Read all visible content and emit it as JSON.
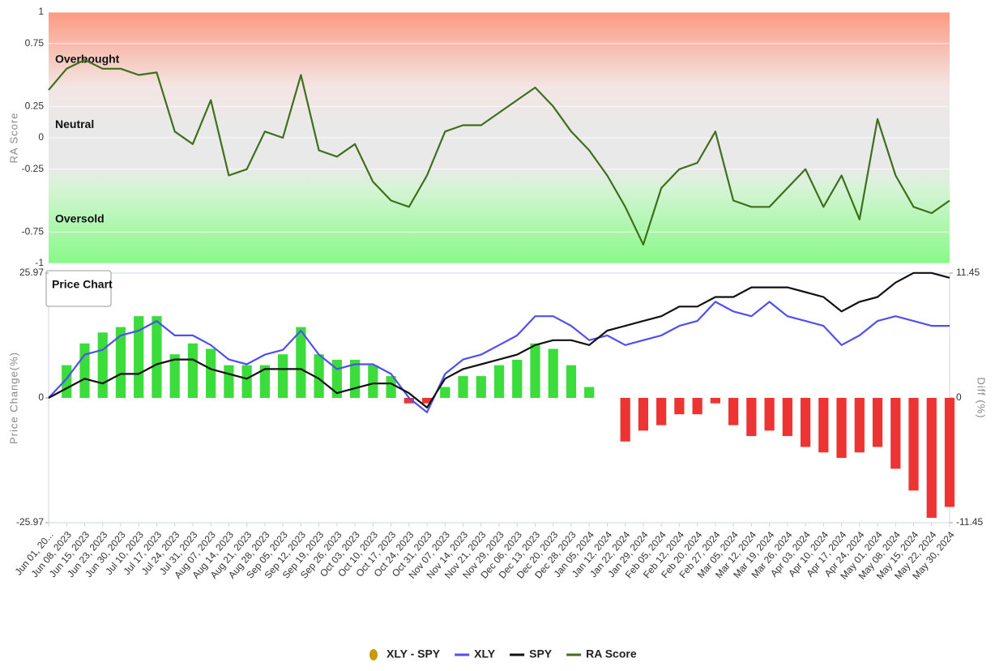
{
  "chart_data": [
    {
      "type": "line",
      "ylabel": "RA Score",
      "annotations": [
        "Overbought",
        "Neutral",
        "Oversold"
      ],
      "ylim": [
        -1,
        1
      ],
      "yticks": [
        -1,
        -0.75,
        -0.25,
        0,
        0.25,
        0.75,
        1
      ],
      "grid": true,
      "series": [
        {
          "name": "RA Score",
          "color": "#3f6f1c",
          "values": [
            0.38,
            0.55,
            0.62,
            0.55,
            0.55,
            0.5,
            0.52,
            0.05,
            -0.05,
            0.3,
            -0.3,
            -0.25,
            0.05,
            0.0,
            0.5,
            -0.1,
            -0.15,
            -0.05,
            -0.35,
            -0.5,
            -0.55,
            -0.3,
            0.05,
            0.1,
            0.1,
            0.2,
            0.3,
            0.4,
            0.25,
            0.05,
            -0.1,
            -0.3,
            -0.55,
            -0.85,
            -0.4,
            -0.25,
            -0.2,
            0.05,
            -0.5,
            -0.55,
            -0.55,
            -0.4,
            -0.25,
            -0.55,
            -0.3,
            -0.65,
            0.15,
            -0.3,
            -0.55,
            -0.6,
            -0.5
          ]
        }
      ]
    },
    {
      "type": "combo",
      "title": "Price Chart",
      "ylabel": "Price Change(%)",
      "y2label": "Diff (%)",
      "categories": [
        "Jun 01, 20...",
        "Jun 08, 2023",
        "Jun 15, 2023",
        "Jun 23, 2023",
        "Jun 30, 2023",
        "Jul 10, 2023",
        "Jul 17, 2023",
        "Jul 24, 2023",
        "Jul 31, 2023",
        "Aug 07, 2023",
        "Aug 14, 2023",
        "Aug 21, 2023",
        "Aug 28, 2023",
        "Sep 05, 2023",
        "Sep 12, 2023",
        "Sep 19, 2023",
        "Sep 26, 2023",
        "Oct 03, 2023",
        "Oct 10, 2023",
        "Oct 17, 2023",
        "Oct 24, 2023",
        "Oct 31, 2023",
        "Nov 07, 2023",
        "Nov 14, 2023",
        "Nov 21, 2023",
        "Nov 29, 2023",
        "Dec 06, 2023",
        "Dec 13, 2023",
        "Dec 20, 2023",
        "Dec 28, 2023",
        "Jan 05, 2024",
        "Jan 12, 2024",
        "Jan 22, 2024",
        "Jan 29, 2024",
        "Feb 05, 2024",
        "Feb 12, 2024",
        "Feb 20, 2024",
        "Feb 27, 2024",
        "Mar 05, 2024",
        "Mar 12, 2024",
        "Mar 19, 2024",
        "Mar 26, 2024",
        "Apr 03, 2024",
        "Apr 10, 2024",
        "Apr 17, 2024",
        "Apr 24, 2024",
        "May 01, 2024",
        "May 08, 2024",
        "May 15, 2024",
        "May 22, 2024",
        "May 30, 2024"
      ],
      "ylim": [
        -25.97,
        25.97
      ],
      "yticks": [
        -25.97,
        0,
        25.97
      ],
      "y2lim": [
        -11.45,
        11.45
      ],
      "y2ticks": [
        -11.45,
        0,
        11.45
      ],
      "series": [
        {
          "name": "XLY - SPY",
          "type": "bar",
          "axis": "y2",
          "color": "#3ddc3d",
          "negative_color": "#ee3333",
          "legend_color": "#c99a06",
          "values": [
            0,
            3,
            5,
            6,
            6.5,
            7.5,
            7.5,
            4,
            5,
            4.5,
            3,
            3,
            3,
            4,
            6.5,
            4,
            3.5,
            3.5,
            3,
            2,
            -0.5,
            -0.5,
            1,
            2,
            2,
            3,
            3.5,
            5,
            4.5,
            3,
            1,
            0,
            -4,
            -3,
            -2.5,
            -1.5,
            -1.5,
            -0.5,
            -2.5,
            -3.5,
            -3,
            -3.5,
            -4.5,
            -5,
            -5.5,
            -5,
            -4.5,
            -6.5,
            -8.5,
            -11,
            -10
          ]
        },
        {
          "name": "XLY",
          "type": "line",
          "color": "#5050ee",
          "values": [
            0,
            4,
            9,
            10,
            13,
            14,
            16,
            13,
            13,
            11,
            8,
            7,
            9,
            10,
            14,
            9,
            6,
            7,
            7,
            5,
            0,
            -3,
            5,
            8,
            9,
            11,
            13,
            17,
            17,
            15,
            12,
            13,
            11,
            12,
            13,
            15,
            16,
            20,
            18,
            17,
            20,
            17,
            16,
            15,
            11,
            13,
            16,
            17,
            16,
            15,
            15
          ]
        },
        {
          "name": "SPY",
          "type": "line",
          "color": "#111111",
          "values": [
            0,
            2,
            4,
            3,
            5,
            5,
            7,
            8,
            8,
            6,
            5,
            4,
            6,
            6,
            6,
            4,
            1,
            2,
            3,
            3,
            1,
            -2,
            4,
            6,
            7,
            8,
            9,
            11,
            12,
            12,
            11,
            14,
            15,
            16,
            17,
            19,
            19,
            21,
            21,
            23,
            23,
            23,
            22,
            21,
            18,
            20,
            21,
            24,
            26,
            26,
            25
          ]
        }
      ]
    }
  ]
}
